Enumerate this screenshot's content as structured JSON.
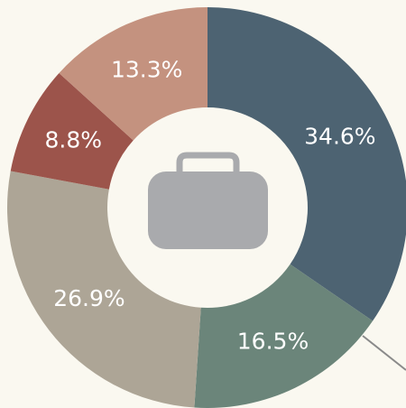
{
  "chart_data": {
    "type": "donut",
    "values": [
      34.6,
      16.5,
      26.9,
      8.8,
      13.3
    ],
    "value_labels": [
      "34.6%",
      "16.5%",
      "26.9%",
      "8.8%",
      "13.3%"
    ],
    "colors": [
      "#4d6372",
      "#6b857a",
      "#ada596",
      "#9c544b",
      "#c4927f"
    ]
  }
}
